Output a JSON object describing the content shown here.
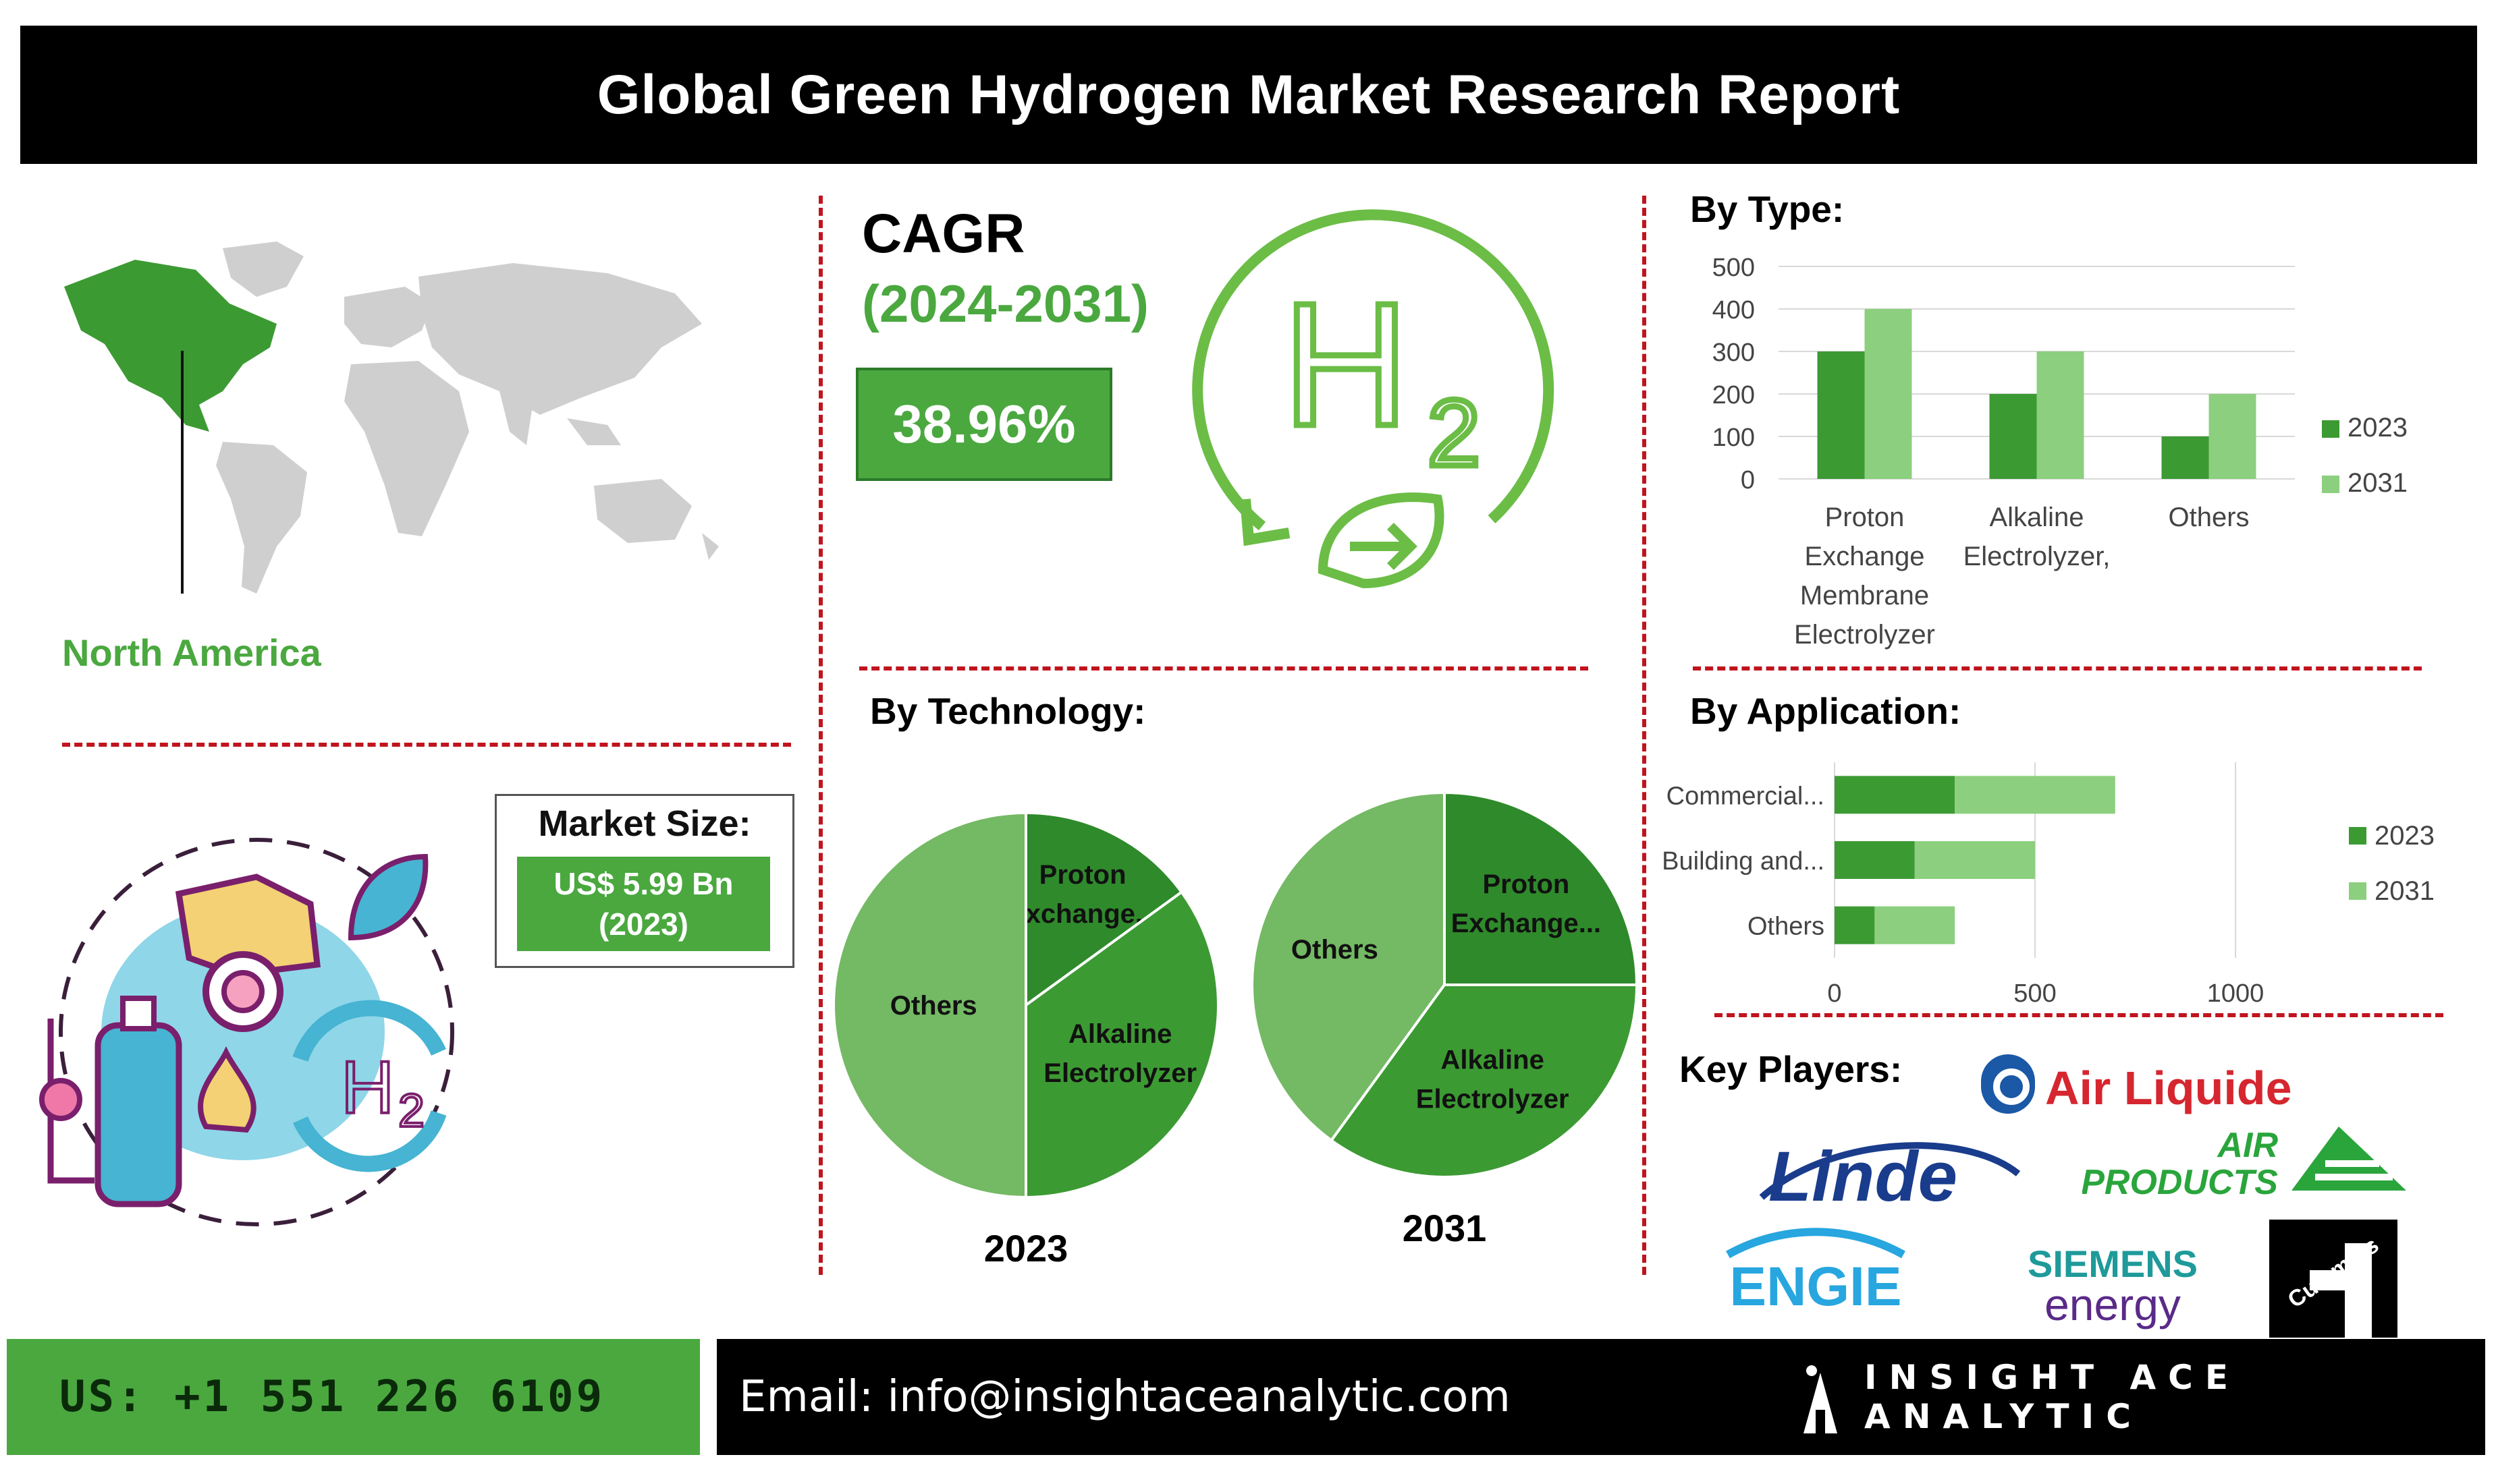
{
  "report": {
    "title": "Global Green Hydrogen Market Research Report",
    "region": "North America"
  },
  "market_size": {
    "label": "Market Size:",
    "value": "US$ 5.99 Bn",
    "year": "(2023)"
  },
  "cagr": {
    "label": "CAGR",
    "period": "(2024-2031)",
    "value": "38.96%"
  },
  "sections": {
    "by_type": "By Type:",
    "by_technology": "By Technology:",
    "by_application": "By Application:",
    "key_players": "Key Players:"
  },
  "key_players": {
    "air_liquide": "Air Liquide",
    "linde": "Linde",
    "air_products_1": "AIR",
    "air_products_2": "PRODUCTS",
    "engie": "ENGIE",
    "siemens": "SIEMENS",
    "siemens_energy": "energy",
    "cummins": "Cummins"
  },
  "footer": {
    "phone": "US: +1 551 226 6109",
    "email": "Email: info@insightaceanalytic.com",
    "brand": "INSIGHT ACE ANALYTIC"
  },
  "colors": {
    "green": "#4aa83f",
    "dark_green": "#3c9a33",
    "darker_green": "#2f8a2b",
    "light_green": "#8ccf7e",
    "red_dash": "#c0141e"
  },
  "chart_data": [
    {
      "id": "by_type",
      "type": "bar",
      "categories": [
        [
          "Proton",
          "Exchange",
          "Membrane",
          "Electrolyzer"
        ],
        [
          "Alkaline",
          "Electrolyzer,"
        ],
        [
          "Others"
        ]
      ],
      "series": [
        {
          "name": "2023",
          "values": [
            300,
            200,
            100
          ],
          "color": "#3c9a33"
        },
        {
          "name": "2031",
          "values": [
            400,
            300,
            200
          ],
          "color": "#8ccf7e"
        }
      ],
      "yticks": [
        0,
        100,
        200,
        300,
        400,
        500
      ],
      "ylim": [
        0,
        500
      ],
      "legend": "right"
    },
    {
      "id": "by_application",
      "type": "bar",
      "orientation": "horizontal",
      "categories": [
        "Commercial...",
        "Building and...",
        "Others"
      ],
      "series": [
        {
          "name": "2023",
          "values": [
            300,
            200,
            100
          ],
          "color": "#3c9a33"
        },
        {
          "name": "2031",
          "values": [
            400,
            300,
            200
          ],
          "color": "#8ccf7e"
        }
      ],
      "xticks": [
        0,
        500,
        1000
      ],
      "xlim": [
        0,
        1000
      ],
      "stacked": true,
      "legend": "right"
    },
    {
      "id": "by_technology_2023",
      "type": "pie",
      "title": "2023",
      "slices": [
        {
          "label": [
            "Proton",
            "Exchange..."
          ],
          "value": 15,
          "color": "#2f8a2b"
        },
        {
          "label": [
            "Alkaline",
            "Electrolyzer"
          ],
          "value": 35,
          "color": "#3c9a33"
        },
        {
          "label": [
            "Others"
          ],
          "value": 50,
          "color": "#74b964"
        }
      ]
    },
    {
      "id": "by_technology_2031",
      "type": "pie",
      "title": "2031",
      "slices": [
        {
          "label": [
            "Proton",
            "Exchange..."
          ],
          "value": 25,
          "color": "#2f8a2b"
        },
        {
          "label": [
            "Alkaline",
            "Electrolyzer"
          ],
          "value": 35,
          "color": "#3c9a33"
        },
        {
          "label": [
            "Others"
          ],
          "value": 40,
          "color": "#74b964"
        }
      ]
    }
  ]
}
